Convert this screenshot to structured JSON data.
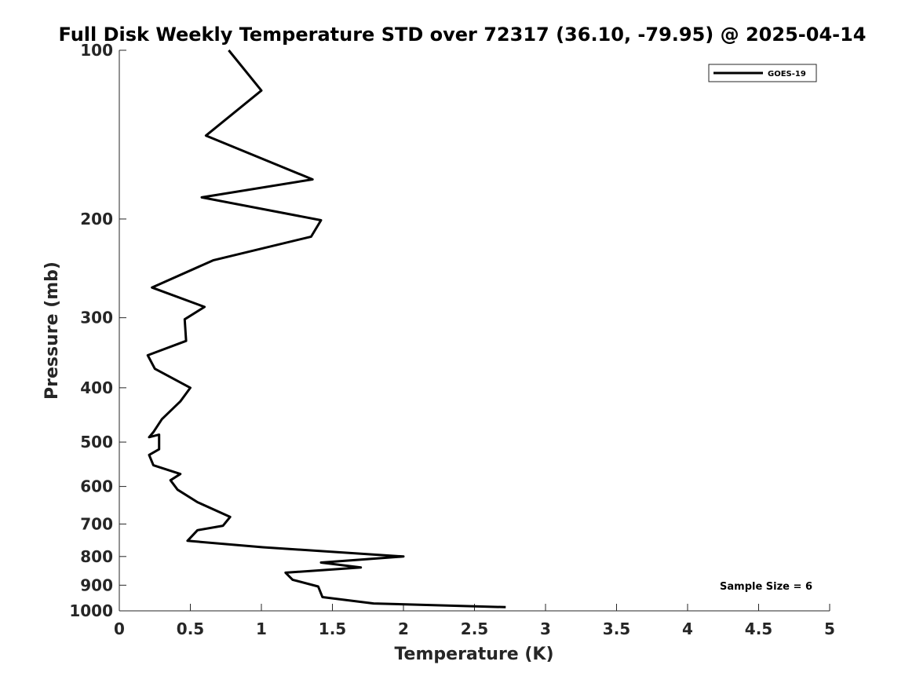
{
  "chart_data": {
    "type": "line",
    "title": "Full Disk Weekly Temperature STD over 72317 (36.10, -79.95) @ 2025-04-14",
    "xlabel": "Temperature (K)",
    "ylabel": "Pressure (mb)",
    "xlim": [
      0,
      5
    ],
    "ylim": [
      100,
      1000
    ],
    "y_scale": "log",
    "y_reversed": true,
    "x_ticks": [
      0,
      0.5,
      1,
      1.5,
      2,
      2.5,
      3,
      3.5,
      4,
      4.5,
      5
    ],
    "x_tick_labels": [
      "0",
      "0.5",
      "1",
      "1.5",
      "2",
      "2.5",
      "3",
      "3.5",
      "4",
      "4.5",
      "5"
    ],
    "y_ticks": [
      100,
      200,
      300,
      400,
      500,
      600,
      700,
      800,
      900,
      1000
    ],
    "y_tick_labels": [
      "100",
      "200",
      "300",
      "400",
      "500",
      "600",
      "700",
      "800",
      "900",
      "1000"
    ],
    "legend_position": "top-right",
    "grid": false,
    "series": [
      {
        "name": "GOES-19",
        "color": "#000000",
        "x": [
          0.77,
          1.0,
          0.61,
          1.36,
          0.58,
          1.42,
          1.35,
          0.66,
          0.23,
          0.6,
          0.46,
          0.47,
          0.2,
          0.25,
          0.5,
          0.43,
          0.3,
          0.24,
          0.21,
          0.28,
          0.28,
          0.21,
          0.24,
          0.43,
          0.36,
          0.41,
          0.55,
          0.78,
          0.73,
          0.55,
          0.48,
          1.01,
          2.0,
          1.42,
          1.7,
          1.17,
          1.22,
          1.4,
          1.43,
          1.79,
          2.72
        ],
        "y": [
          100,
          118,
          142,
          170,
          183,
          201,
          215,
          237,
          265,
          287,
          302,
          330,
          350,
          370,
          400,
          423,
          455,
          480,
          490,
          485,
          515,
          527,
          550,
          570,
          585,
          608,
          640,
          680,
          705,
          718,
          750,
          770,
          800,
          820,
          837,
          855,
          880,
          905,
          945,
          970,
          985
        ]
      }
    ],
    "annotations": [
      "Sample Size = 6"
    ]
  }
}
